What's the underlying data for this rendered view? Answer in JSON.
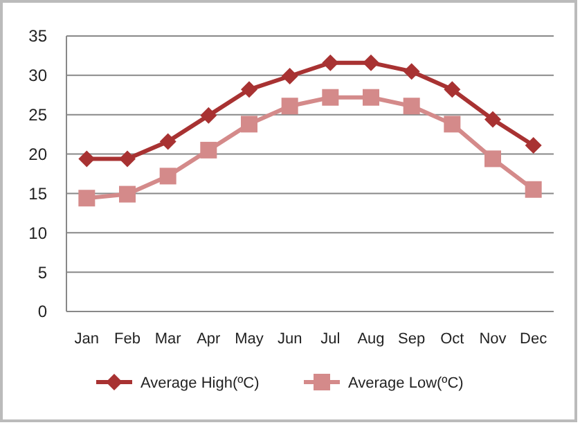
{
  "chart_data": {
    "type": "line",
    "categories": [
      "Jan",
      "Feb",
      "Mar",
      "Apr",
      "May",
      "Jun",
      "Jul",
      "Aug",
      "Sep",
      "Oct",
      "Nov",
      "Dec"
    ],
    "series": [
      {
        "name": "Average High(ºC)",
        "color": "#a83232",
        "marker": "diamond",
        "values": [
          19.4,
          19.4,
          21.6,
          24.9,
          28.2,
          29.9,
          31.6,
          31.6,
          30.5,
          28.2,
          24.4,
          21.1
        ]
      },
      {
        "name": "Average Low(ºC)",
        "color": "#d48a8a",
        "marker": "square",
        "values": [
          14.4,
          14.9,
          17.2,
          20.5,
          23.8,
          26.1,
          27.2,
          27.2,
          26.1,
          23.8,
          19.4,
          15.5
        ]
      }
    ],
    "ylim": [
      0,
      35
    ],
    "yticks": [
      0,
      5,
      10,
      15,
      20,
      25,
      30,
      35
    ],
    "grid": "y",
    "legend": "bottom"
  }
}
